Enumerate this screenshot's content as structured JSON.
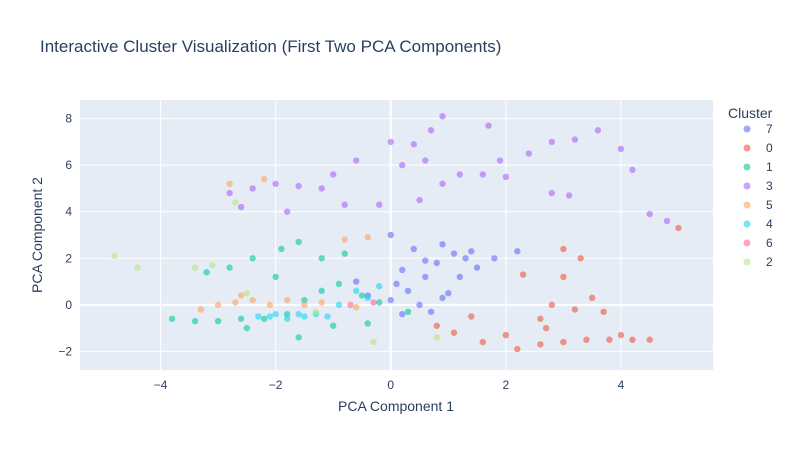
{
  "chart_data": {
    "type": "scatter",
    "title": "Interactive Cluster Visualization (First Two PCA Components)",
    "xlabel": "PCA Component 1",
    "ylabel": "PCA Component 2",
    "xlim": [
      -5.4,
      5.6
    ],
    "ylim": [
      -2.8,
      8.8
    ],
    "xticks": [
      -4,
      -2,
      0,
      2,
      4
    ],
    "yticks": [
      -2,
      0,
      2,
      4,
      6,
      8
    ],
    "tick_labels": {
      "x": [
        "−4",
        "−2",
        "0",
        "2",
        "4"
      ],
      "y": [
        "−2",
        "0",
        "2",
        "4",
        "6",
        "8"
      ]
    },
    "grid": true,
    "plot_bgcolor": "#E5ECF6",
    "legend": {
      "title": "Cluster",
      "placement": "right",
      "order": [
        "7",
        "0",
        "1",
        "3",
        "5",
        "4",
        "6",
        "2"
      ]
    },
    "marker_opacity": 0.6,
    "series": [
      {
        "name": "7",
        "color": "#636EFA",
        "points": [
          [
            0.0,
            0.2
          ],
          [
            0.3,
            0.6
          ],
          [
            0.6,
            1.2
          ],
          [
            0.8,
            1.8
          ],
          [
            1.1,
            2.2
          ],
          [
            0.5,
            0.0
          ],
          [
            1.0,
            0.5
          ],
          [
            0.2,
            1.5
          ],
          [
            0.9,
            2.6
          ],
          [
            1.3,
            2.0
          ],
          [
            1.8,
            2.0
          ],
          [
            2.2,
            2.3
          ],
          [
            0.1,
            0.9
          ],
          [
            -0.4,
            0.4
          ],
          [
            0.7,
            -0.3
          ],
          [
            1.2,
            1.2
          ],
          [
            0.4,
            2.4
          ],
          [
            0.0,
            3.0
          ],
          [
            1.5,
            1.6
          ],
          [
            -0.6,
            1.0
          ],
          [
            0.9,
            0.3
          ],
          [
            0.2,
            -0.4
          ],
          [
            1.4,
            2.3
          ],
          [
            0.6,
            1.9
          ]
        ]
      },
      {
        "name": "0",
        "color": "#EF553B",
        "points": [
          [
            2.6,
            -1.7
          ],
          [
            3.0,
            -1.6
          ],
          [
            3.4,
            -1.5
          ],
          [
            3.8,
            -1.5
          ],
          [
            4.2,
            -1.5
          ],
          [
            2.2,
            -1.9
          ],
          [
            1.6,
            -1.6
          ],
          [
            1.1,
            -1.2
          ],
          [
            0.8,
            -0.9
          ],
          [
            2.6,
            -0.6
          ],
          [
            3.2,
            -0.2
          ],
          [
            3.5,
            0.3
          ],
          [
            3.0,
            1.2
          ],
          [
            3.3,
            2.0
          ],
          [
            3.0,
            2.4
          ],
          [
            2.8,
            0.0
          ],
          [
            4.5,
            -1.5
          ],
          [
            4.0,
            -1.3
          ],
          [
            2.0,
            -1.3
          ],
          [
            1.4,
            -0.5
          ],
          [
            3.7,
            -0.3
          ],
          [
            5.0,
            3.3
          ],
          [
            2.3,
            1.3
          ],
          [
            2.7,
            -1.0
          ]
        ]
      },
      {
        "name": "1",
        "color": "#00CC96",
        "points": [
          [
            -3.8,
            -0.6
          ],
          [
            -3.4,
            -0.7
          ],
          [
            -3.0,
            -0.7
          ],
          [
            -2.6,
            -0.6
          ],
          [
            -2.2,
            -0.6
          ],
          [
            -1.8,
            -0.4
          ],
          [
            -1.5,
            0.2
          ],
          [
            -1.2,
            0.6
          ],
          [
            -0.9,
            0.9
          ],
          [
            -0.5,
            0.4
          ],
          [
            -0.2,
            0.1
          ],
          [
            -2.0,
            1.2
          ],
          [
            -2.4,
            2.0
          ],
          [
            -1.9,
            2.4
          ],
          [
            -1.6,
            2.7
          ],
          [
            -1.2,
            2.0
          ],
          [
            -0.8,
            2.2
          ],
          [
            -2.8,
            1.6
          ],
          [
            -3.2,
            1.4
          ],
          [
            -1.0,
            -0.9
          ],
          [
            -1.6,
            -1.4
          ],
          [
            -2.5,
            -1.0
          ],
          [
            -0.4,
            -0.8
          ],
          [
            0.3,
            -0.3
          ]
        ]
      },
      {
        "name": "3",
        "color": "#AB63FA",
        "points": [
          [
            -2.8,
            4.8
          ],
          [
            -2.4,
            5.0
          ],
          [
            -2.0,
            5.2
          ],
          [
            -1.6,
            5.1
          ],
          [
            -1.2,
            5.0
          ],
          [
            -0.8,
            4.3
          ],
          [
            -2.6,
            4.2
          ],
          [
            -1.8,
            4.0
          ],
          [
            0.0,
            7.0
          ],
          [
            0.4,
            6.9
          ],
          [
            0.7,
            7.5
          ],
          [
            0.9,
            8.1
          ],
          [
            0.6,
            6.2
          ],
          [
            0.9,
            5.2
          ],
          [
            0.5,
            4.5
          ],
          [
            1.2,
            5.6
          ],
          [
            1.6,
            5.6
          ],
          [
            2.0,
            5.5
          ],
          [
            2.4,
            6.5
          ],
          [
            2.8,
            7.0
          ],
          [
            3.2,
            7.1
          ],
          [
            3.6,
            7.5
          ],
          [
            4.0,
            6.7
          ],
          [
            4.2,
            5.8
          ],
          [
            1.7,
            7.7
          ],
          [
            2.8,
            4.8
          ],
          [
            3.1,
            4.7
          ],
          [
            4.5,
            3.9
          ],
          [
            4.8,
            3.6
          ],
          [
            -0.2,
            4.3
          ],
          [
            -0.6,
            6.2
          ],
          [
            -1.0,
            5.6
          ],
          [
            0.2,
            6.0
          ],
          [
            1.9,
            6.2
          ]
        ]
      },
      {
        "name": "5",
        "color": "#FFA15A",
        "points": [
          [
            -3.0,
            0.0
          ],
          [
            -2.7,
            0.1
          ],
          [
            -2.4,
            0.2
          ],
          [
            -2.1,
            0.0
          ],
          [
            -1.8,
            0.2
          ],
          [
            -1.5,
            0.0
          ],
          [
            -1.2,
            0.1
          ],
          [
            -2.8,
            5.2
          ],
          [
            -2.2,
            5.4
          ],
          [
            -3.3,
            -0.2
          ],
          [
            -0.8,
            2.8
          ],
          [
            -0.4,
            2.9
          ],
          [
            -2.6,
            0.4
          ],
          [
            -0.6,
            -0.1
          ]
        ]
      },
      {
        "name": "4",
        "color": "#19D3F3",
        "points": [
          [
            -2.3,
            -0.5
          ],
          [
            -2.0,
            -0.4
          ],
          [
            -1.8,
            -0.6
          ],
          [
            -1.6,
            -0.4
          ],
          [
            -1.3,
            -0.4
          ],
          [
            -1.1,
            -0.5
          ],
          [
            -0.9,
            0.0
          ],
          [
            -0.6,
            0.6
          ],
          [
            -0.2,
            0.8
          ],
          [
            -1.5,
            -0.5
          ],
          [
            -2.1,
            -0.5
          ],
          [
            -0.4,
            0.3
          ]
        ]
      },
      {
        "name": "6",
        "color": "#FF6692",
        "points": [
          [
            -0.7,
            0.0
          ],
          [
            -0.3,
            0.1
          ]
        ]
      },
      {
        "name": "2",
        "color": "#B6E880",
        "points": [
          [
            -4.8,
            2.1
          ],
          [
            -4.4,
            1.6
          ],
          [
            -3.4,
            1.6
          ],
          [
            -3.1,
            1.7
          ],
          [
            -2.7,
            4.4
          ],
          [
            -0.3,
            -1.6
          ],
          [
            -1.3,
            -0.3
          ],
          [
            0.8,
            -1.4
          ],
          [
            -2.5,
            0.5
          ]
        ]
      }
    ]
  }
}
